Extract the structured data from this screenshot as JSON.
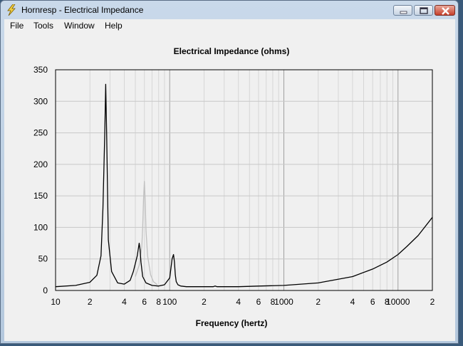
{
  "window": {
    "title": "Hornresp - Electrical Impedance",
    "icon": "lightning-icon"
  },
  "controls": {
    "minimize": "minimize-icon",
    "maximize": "maximize-icon",
    "close": "close-icon"
  },
  "menu": {
    "items": [
      "File",
      "Tools",
      "Window",
      "Help"
    ]
  },
  "chart_data": {
    "type": "line",
    "title": "Electrical Impedance (ohms)",
    "xlabel": "Frequency (hertz)",
    "ylabel": "",
    "xscale": "log",
    "xlim": [
      10,
      20000
    ],
    "ylim": [
      0,
      350
    ],
    "yticks": [
      0,
      50,
      100,
      150,
      200,
      250,
      300,
      350
    ],
    "xtick_labels": [
      {
        "x": 10,
        "label": "10"
      },
      {
        "x": 20,
        "label": "2"
      },
      {
        "x": 40,
        "label": "4"
      },
      {
        "x": 60,
        "label": "6"
      },
      {
        "x": 80,
        "label": "8"
      },
      {
        "x": 100,
        "label": "100"
      },
      {
        "x": 200,
        "label": "2"
      },
      {
        "x": 400,
        "label": "4"
      },
      {
        "x": 600,
        "label": "6"
      },
      {
        "x": 800,
        "label": "8"
      },
      {
        "x": 1000,
        "label": "1000"
      },
      {
        "x": 2000,
        "label": "2"
      },
      {
        "x": 4000,
        "label": "4"
      },
      {
        "x": 6000,
        "label": "6"
      },
      {
        "x": 8000,
        "label": "8"
      },
      {
        "x": 10000,
        "label": "10000"
      },
      {
        "x": 20000,
        "label": "2"
      }
    ],
    "grid": true,
    "series": [
      {
        "color": "#000000",
        "x": [
          10,
          15,
          20,
          23,
          25,
          26,
          27,
          27.5,
          28,
          29,
          31,
          35,
          40,
          45,
          48,
          52,
          54,
          55,
          56,
          58,
          62,
          70,
          80,
          90,
          100,
          105,
          108,
          110,
          112,
          114,
          118,
          125,
          140,
          160,
          200,
          240,
          250,
          260,
          300,
          400,
          600,
          1000,
          2000,
          4000,
          6000,
          8000,
          10000,
          12000,
          15000,
          20000
        ],
        "y": [
          6,
          8,
          13,
          24,
          55,
          130,
          250,
          327,
          250,
          80,
          30,
          12,
          10,
          16,
          30,
          55,
          75,
          65,
          45,
          22,
          12,
          8,
          7,
          9,
          20,
          50,
          57,
          45,
          25,
          14,
          9,
          7,
          6,
          6,
          6,
          6,
          7,
          6,
          6,
          6,
          7,
          8,
          12,
          22,
          34,
          45,
          57,
          70,
          87,
          116
        ]
      },
      {
        "color": "#c0c0c0",
        "x": [
          50,
          54,
          57,
          58,
          59,
          60,
          61,
          62,
          64,
          68,
          72,
          78
        ],
        "y": [
          22,
          40,
          70,
          100,
          145,
          173,
          140,
          95,
          55,
          25,
          14,
          9
        ]
      }
    ]
  }
}
